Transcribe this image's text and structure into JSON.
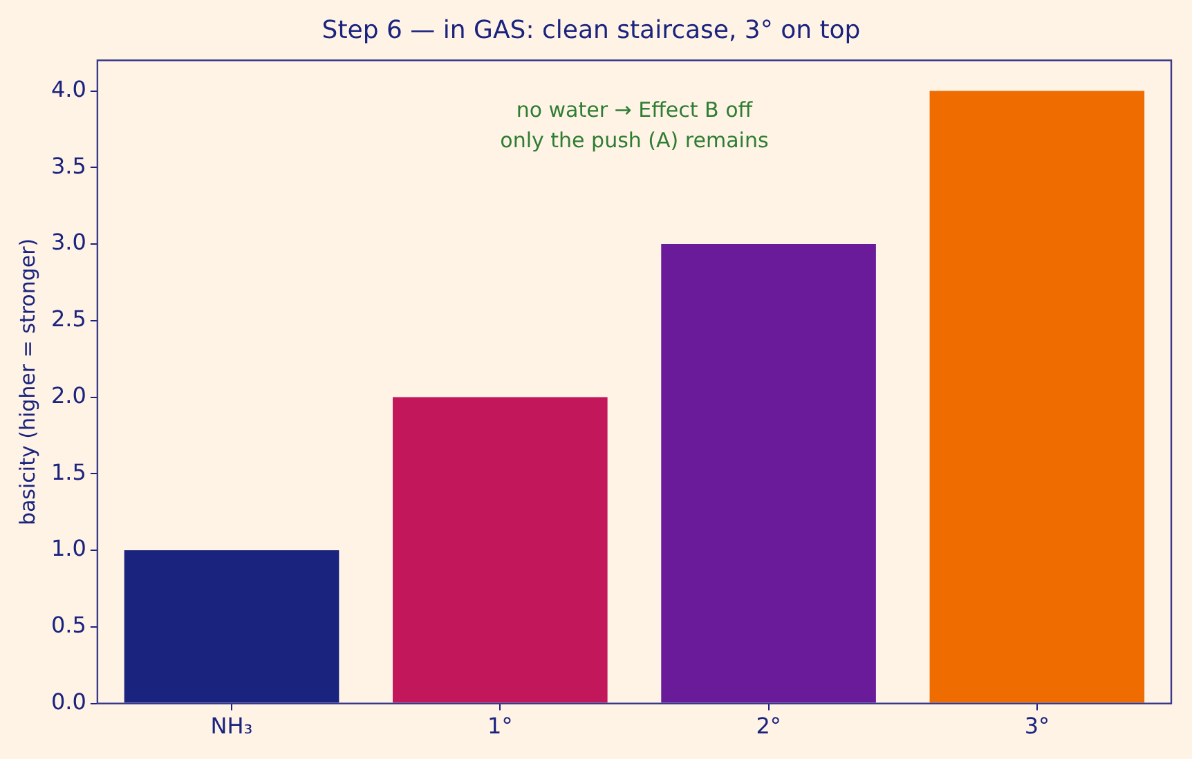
{
  "chart_data": {
    "type": "bar",
    "title": "Step 6 — in GAS: clean staircase, 3° on top",
    "ylabel": "basicity (higher = stronger)",
    "categories": [
      "NH₃",
      "1°",
      "2°",
      "3°"
    ],
    "values": [
      1,
      2,
      3,
      4
    ],
    "colors": [
      "#1a237e",
      "#c2185b",
      "#6a1b9a",
      "#ef6c00"
    ],
    "ylim": [
      0,
      4.2
    ],
    "yticks": [
      {
        "value": 0,
        "label": "0.0"
      },
      {
        "value": 0.5,
        "label": "0.5"
      },
      {
        "value": 1,
        "label": "1.0"
      },
      {
        "value": 1.5,
        "label": "1.5"
      },
      {
        "value": 2,
        "label": "2.0"
      },
      {
        "value": 2.5,
        "label": "2.5"
      },
      {
        "value": 3,
        "label": "3.0"
      },
      {
        "value": 3.5,
        "label": "3.5"
      },
      {
        "value": 4,
        "label": "4.0"
      }
    ],
    "grid": false,
    "legend": false,
    "annotations": [
      "no water → Effect B off\nonly the push (A) remains"
    ]
  }
}
